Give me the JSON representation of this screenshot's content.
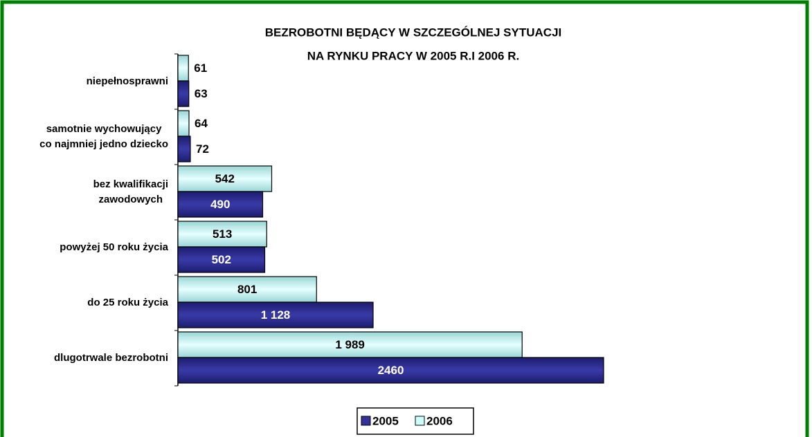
{
  "chart_data": {
    "type": "bar",
    "orientation": "horizontal",
    "title": [
      "BEZROBOTNI BĘDĄCY W  SZCZEGÓLNEJ  SYTUACJI",
      "NA  RYNKU  PRACY  W   2005 R.I 2006 R."
    ],
    "categories": [
      "niepełnosprawni",
      "samotnie wychowujący\nco najmniej jedno dziecko",
      "bez kwalifikacji\nzawodowych",
      "powyżej 50 roku życia",
      "do 25 roku życia",
      "dlugotrwale bezrobotni"
    ],
    "series": [
      {
        "name": "2006",
        "color": "#ccffff",
        "values": [
          61,
          64,
          542,
          513,
          801,
          1989
        ],
        "value_labels": [
          "61",
          "64",
          "542",
          "513",
          "801",
          "1 989"
        ]
      },
      {
        "name": "2005",
        "color": "#333399",
        "values": [
          63,
          72,
          490,
          502,
          1128,
          2460
        ],
        "value_labels": [
          "63",
          "72",
          "490",
          "502",
          "1 128",
          "2460"
        ]
      }
    ],
    "legend_order": [
      "2005",
      "2006"
    ],
    "xlim": [
      0,
      2460
    ]
  }
}
